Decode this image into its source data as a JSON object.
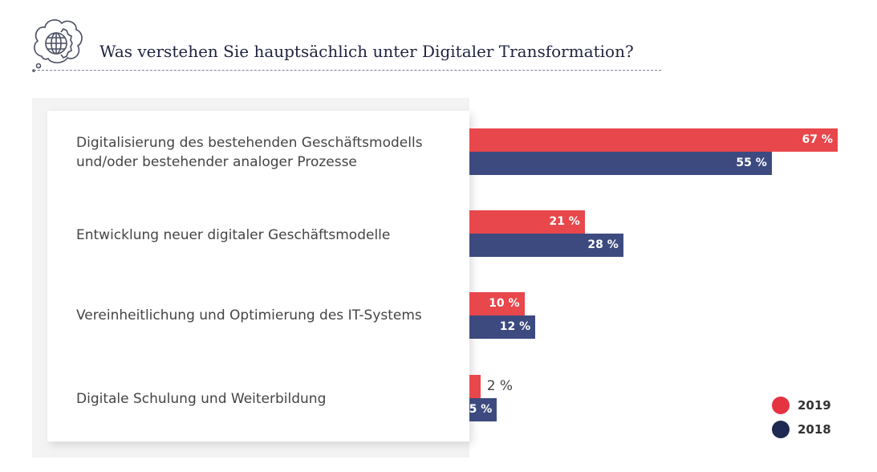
{
  "chart_data": {
    "type": "bar",
    "orientation": "horizontal",
    "title": "Was verstehen Sie hauptsächlich unter Digitaler Transformation?",
    "categories": [
      "Digitalisierung des bestehenden Geschäftsmodells und/oder bestehender analoger Prozesse",
      "Entwicklung neuer digitaler Geschäftsmodelle",
      "Vereinheitlichung und Optimierung des IT-Systems",
      "Digitale Schulung und Weiterbildung"
    ],
    "series": [
      {
        "name": "2019",
        "color": "#e8474c",
        "values": [
          67,
          21,
          10,
          2
        ],
        "labels": [
          "67 %",
          "21 %",
          "10 %",
          "2 %"
        ]
      },
      {
        "name": "2018",
        "color": "#3d4a80",
        "values": [
          55,
          28,
          12,
          5
        ],
        "labels": [
          "55 %",
          "28 %",
          "12 %",
          "5 %"
        ]
      }
    ],
    "legend": {
      "position": "bottom-right",
      "colors": [
        "#e63340",
        "#1e2a52"
      ]
    },
    "icon": "globe-gear-thought-cloud-icon"
  }
}
